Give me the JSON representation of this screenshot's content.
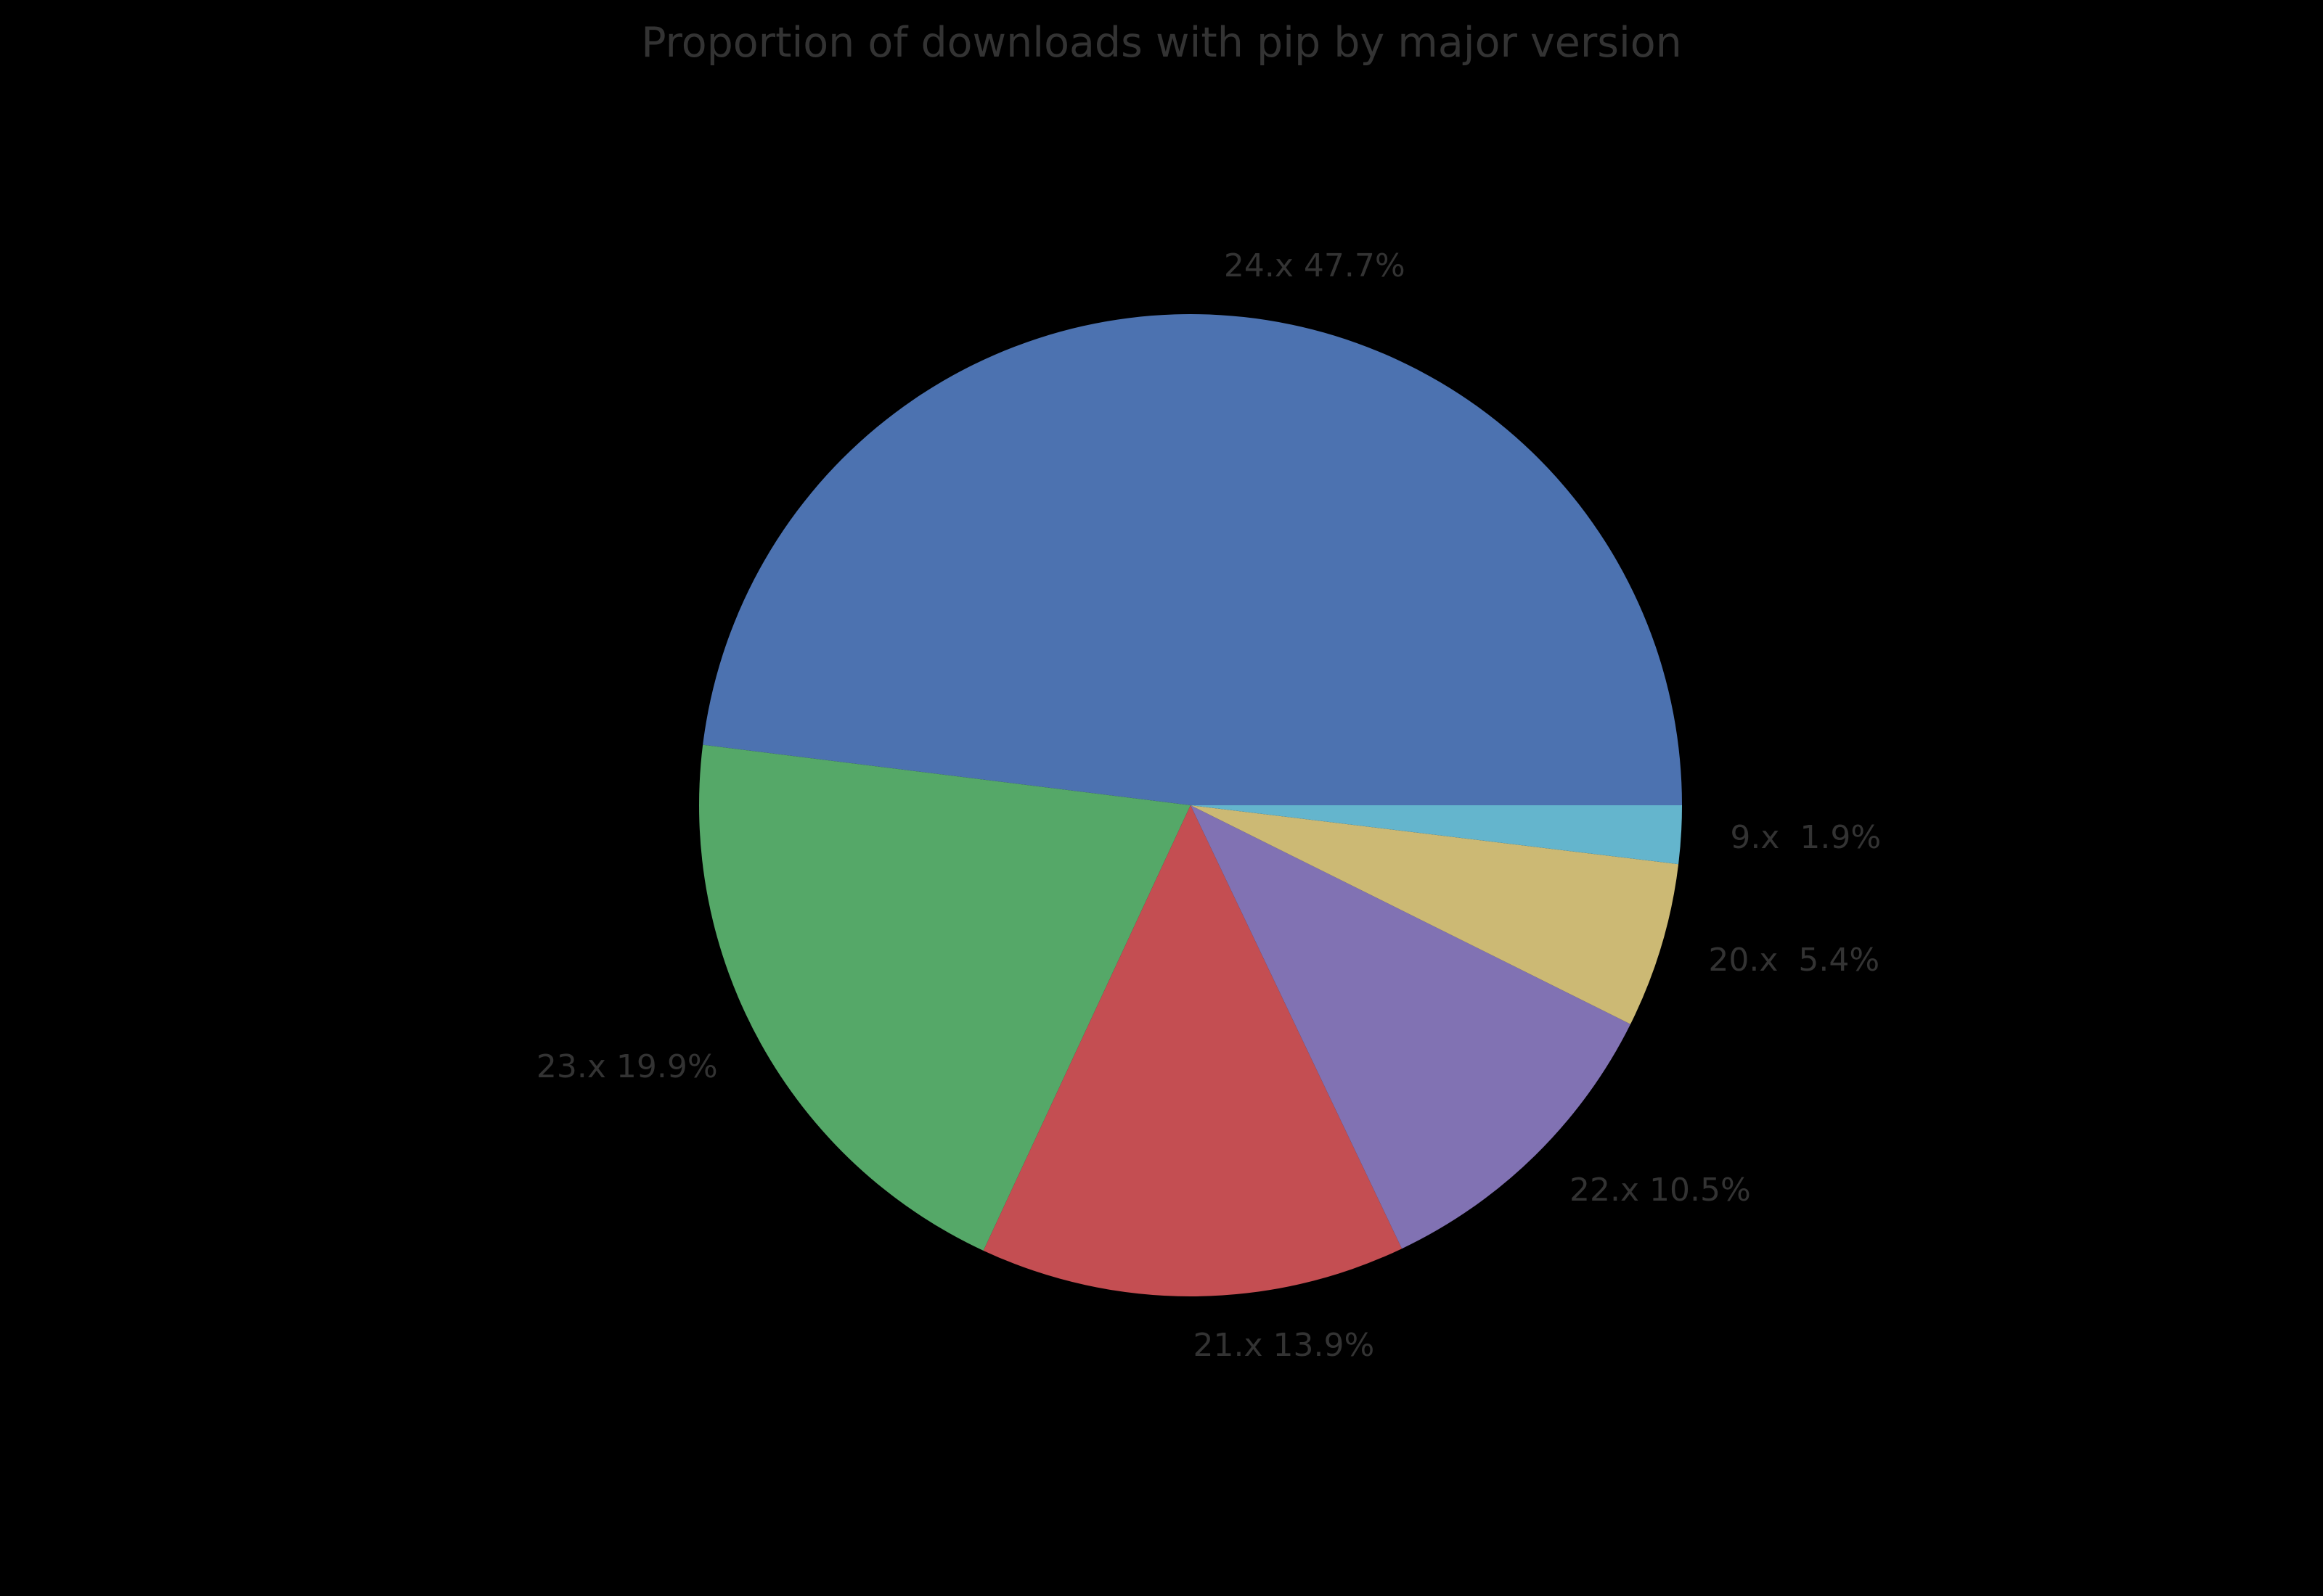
{
  "background_color": "#000000",
  "text_color": "#333333",
  "chart_data": {
    "type": "pie",
    "title": "Proportion of downloads with pip by major version",
    "start_angle_deg": 0,
    "direction": "counterclockwise",
    "label_distance": 1.1,
    "legend": "none",
    "slices": [
      {
        "name": "24.x",
        "label": "24.x 47.7%",
        "value": 47.7,
        "color": "#4c72b0"
      },
      {
        "name": "23.x",
        "label": "23.x 19.9%",
        "value": 19.9,
        "color": "#55a868"
      },
      {
        "name": "21.x",
        "label": "21.x 13.9%",
        "value": 13.9,
        "color": "#c44e52"
      },
      {
        "name": "22.x",
        "label": "22.x 10.5%",
        "value": 10.5,
        "color": "#8172b3"
      },
      {
        "name": "20.x",
        "label": "20.x  5.4%",
        "value": 5.4,
        "color": "#ccb974"
      },
      {
        "name": "9.x",
        "label": "9.x  1.9%",
        "value": 1.9,
        "color": "#64b5cd"
      }
    ]
  }
}
